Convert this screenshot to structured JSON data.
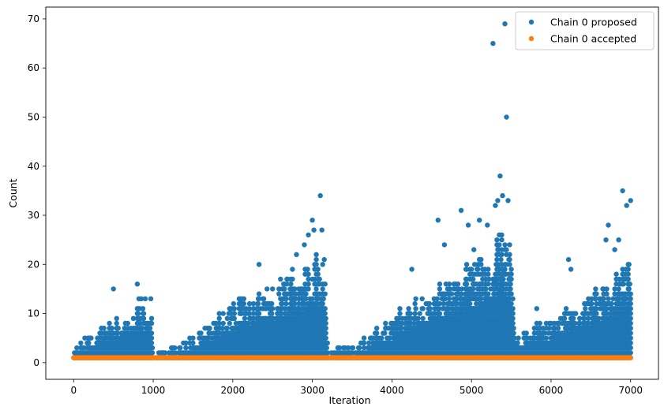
{
  "chart_data": {
    "type": "scatter",
    "title": "",
    "xlabel": "Iteration",
    "ylabel": "Count",
    "xlim": [
      -350,
      7350
    ],
    "ylim": [
      -3.4,
      72.4
    ],
    "xticks": [
      0,
      1000,
      2000,
      3000,
      4000,
      5000,
      6000,
      7000
    ],
    "xtick_labels": [
      "0",
      "1000",
      "2000",
      "3000",
      "4000",
      "5000",
      "6000",
      "7000"
    ],
    "yticks": [
      0,
      10,
      20,
      30,
      40,
      50,
      60,
      70
    ],
    "ytick_labels": [
      "0",
      "10",
      "20",
      "30",
      "40",
      "50",
      "60",
      "70"
    ],
    "grid": false,
    "legend_position": "top-right",
    "colors": {
      "proposed": "#1f77b4",
      "accepted": "#ff7f0e"
    },
    "series": [
      {
        "name": "Chain 0 proposed",
        "color": "#1f77b4",
        "band_description": "dense vertical bands of integer counts from 1 up to per-iteration envelope",
        "points": [
          [
            500,
            15
          ],
          [
            800,
            16
          ],
          [
            820,
            13
          ],
          [
            850,
            13
          ],
          [
            900,
            13
          ],
          [
            970,
            13
          ],
          [
            2330,
            20
          ],
          [
            2600,
            17
          ],
          [
            2750,
            19
          ],
          [
            2800,
            22
          ],
          [
            2900,
            24
          ],
          [
            2950,
            26
          ],
          [
            3000,
            29
          ],
          [
            3020,
            27
          ],
          [
            3050,
            22
          ],
          [
            3100,
            34
          ],
          [
            3120,
            27
          ],
          [
            3150,
            21
          ],
          [
            4250,
            19
          ],
          [
            4580,
            29
          ],
          [
            4660,
            24
          ],
          [
            4870,
            31
          ],
          [
            4960,
            28
          ],
          [
            5030,
            23
          ],
          [
            5100,
            29
          ],
          [
            5200,
            28
          ],
          [
            5270,
            65
          ],
          [
            5300,
            32
          ],
          [
            5330,
            33
          ],
          [
            5360,
            38
          ],
          [
            5390,
            34
          ],
          [
            5420,
            69
          ],
          [
            5440,
            50
          ],
          [
            5460,
            33
          ],
          [
            5480,
            24
          ],
          [
            5820,
            11
          ],
          [
            6220,
            21
          ],
          [
            6250,
            19
          ],
          [
            6690,
            25
          ],
          [
            6720,
            28
          ],
          [
            6800,
            23
          ],
          [
            6850,
            25
          ],
          [
            6900,
            35
          ],
          [
            6950,
            32
          ],
          [
            6980,
            20
          ],
          [
            7000,
            33
          ]
        ],
        "envelope": [
          [
            0,
            2
          ],
          [
            100,
            4
          ],
          [
            200,
            5
          ],
          [
            300,
            6
          ],
          [
            400,
            7
          ],
          [
            500,
            8
          ],
          [
            600,
            9
          ],
          [
            700,
            9
          ],
          [
            800,
            10
          ],
          [
            900,
            11
          ],
          [
            980,
            10
          ],
          [
            1000,
            0
          ],
          [
            1080,
            2
          ],
          [
            1200,
            2
          ],
          [
            1300,
            3
          ],
          [
            1400,
            4
          ],
          [
            1500,
            5
          ],
          [
            1600,
            6
          ],
          [
            1700,
            7
          ],
          [
            1800,
            9
          ],
          [
            1900,
            10
          ],
          [
            2000,
            11
          ],
          [
            2100,
            12
          ],
          [
            2200,
            12
          ],
          [
            2300,
            13
          ],
          [
            2400,
            14
          ],
          [
            2500,
            14
          ],
          [
            2600,
            15
          ],
          [
            2700,
            16
          ],
          [
            2800,
            17
          ],
          [
            2900,
            18
          ],
          [
            3000,
            19
          ],
          [
            3100,
            20
          ],
          [
            3150,
            19
          ],
          [
            3200,
            1
          ],
          [
            3300,
            3
          ],
          [
            3400,
            3
          ],
          [
            3500,
            3
          ],
          [
            3600,
            4
          ],
          [
            3700,
            5
          ],
          [
            3800,
            6
          ],
          [
            3900,
            7
          ],
          [
            4000,
            8
          ],
          [
            4100,
            10
          ],
          [
            4200,
            11
          ],
          [
            4300,
            12
          ],
          [
            4400,
            13
          ],
          [
            4500,
            14
          ],
          [
            4600,
            15
          ],
          [
            4700,
            16
          ],
          [
            4800,
            17
          ],
          [
            4900,
            18
          ],
          [
            5000,
            19
          ],
          [
            5100,
            20
          ],
          [
            5200,
            21
          ],
          [
            5300,
            23
          ],
          [
            5400,
            24
          ],
          [
            5500,
            20
          ],
          [
            5550,
            5
          ],
          [
            5600,
            5
          ],
          [
            5700,
            6
          ],
          [
            5800,
            7
          ],
          [
            5900,
            7
          ],
          [
            6000,
            8
          ],
          [
            6100,
            9
          ],
          [
            6200,
            10
          ],
          [
            6300,
            11
          ],
          [
            6400,
            12
          ],
          [
            6500,
            13
          ],
          [
            6600,
            14
          ],
          [
            6700,
            15
          ],
          [
            6800,
            17
          ],
          [
            6900,
            18
          ],
          [
            7000,
            18
          ]
        ]
      },
      {
        "name": "Chain 0 accepted",
        "color": "#ff7f0e",
        "constant_value": 1,
        "x_range": [
          0,
          7000
        ]
      }
    ]
  }
}
